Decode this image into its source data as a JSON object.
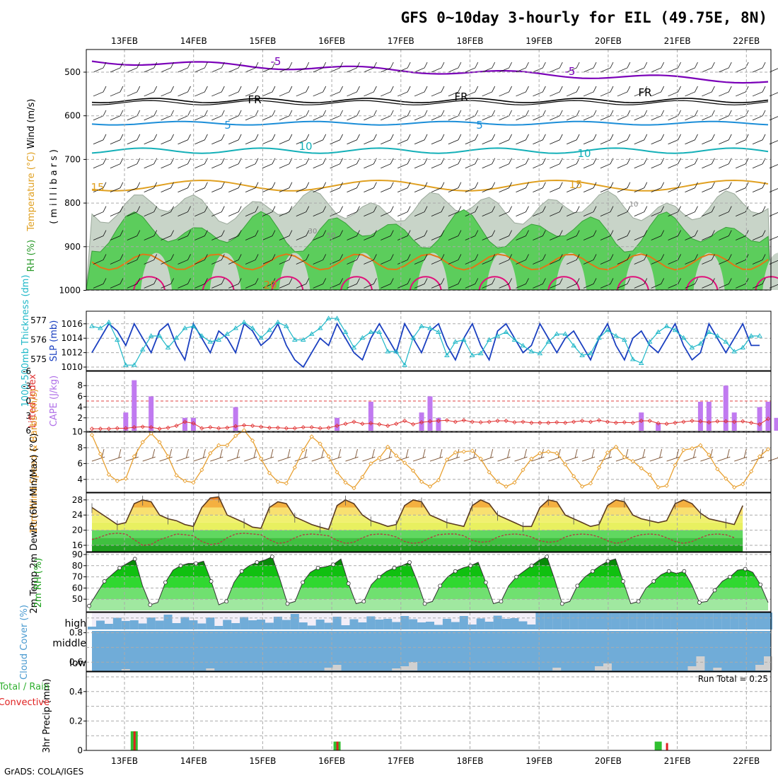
{
  "page": {
    "title": "GFS 0~10day 3-hourly for EIL (49.75E, 8N)",
    "footer": "GrADS: COLA/IGES"
  },
  "colors": {
    "purple": "#7a00b8",
    "black": "#000000",
    "blue5": "#1c8ed8",
    "teal10": "#14b0b8",
    "orange15": "#e0a020",
    "orange20": "#e07818",
    "magenta": "#e0107a",
    "rh_green": "#5ccd5c",
    "rh_gray": "#c8d4c8",
    "slp_blue": "#1a3fc0",
    "thick_teal": "#20b8c8",
    "cape_purple": "#c07af0",
    "li_red": "#e03030",
    "wind_orange": "#e8a030",
    "barb_brown": "#7a5030",
    "temp_fill": "#f0a030",
    "dew_line": "#b04040",
    "rh2m_green": "#18b818",
    "cloud_blue": "#70acd8",
    "precip_green": "#30c030",
    "precip_red": "#e02020"
  },
  "chart_data": [
    {
      "id": "upper_air",
      "type": "heatmap",
      "ylabel_parts": [
        "RH (%)",
        "Temperature (°C)",
        "Wind (m/s)"
      ],
      "ylabel_units": "(millibars)",
      "yticks": [
        "500",
        "600",
        "700",
        "800",
        "900",
        "1000"
      ],
      "xticks": [
        "13FEB",
        "14FEB",
        "15FEB",
        "16FEB",
        "17FEB",
        "18FEB",
        "19FEB",
        "20FEB",
        "21FEB",
        "22FEB"
      ],
      "contour_labels": [
        "-5",
        "-5",
        "FR",
        "FR",
        "FR",
        "5",
        "5",
        "10",
        "10",
        "15",
        "15",
        "20",
        "10",
        "30",
        "50"
      ]
    },
    {
      "id": "slp_thickness",
      "type": "line",
      "ylabel_left": "1000-500mb Thickness (dm)",
      "ylabel_right": "SLP (mb)",
      "yticks_left": [
        "575",
        "576",
        "577"
      ],
      "yticks_right": [
        "1010",
        "1012",
        "1014",
        "1016"
      ],
      "ylim_right": [
        1009,
        1017
      ],
      "series": [
        {
          "name": "SLP (mb)",
          "values": [
            1012,
            1014,
            1016,
            1015,
            1013,
            1016,
            1014,
            1012,
            1015,
            1016,
            1013,
            1011,
            1016,
            1014,
            1012,
            1015,
            1014,
            1012,
            1016,
            1015,
            1013,
            1014,
            1016,
            1013,
            1011,
            1010,
            1012,
            1014,
            1013,
            1016,
            1014,
            1012,
            1011,
            1014,
            1016,
            1014,
            1012,
            1016,
            1014,
            1012,
            1015,
            1016,
            1013,
            1011,
            1014,
            1016,
            1013,
            1011,
            1015,
            1016,
            1014,
            1012,
            1013,
            1016,
            1014,
            1012,
            1014,
            1015,
            1013,
            1011,
            1014,
            1016,
            1013,
            1011,
            1014,
            1015,
            1013,
            1012,
            1014,
            1016,
            1013,
            1011,
            1012,
            1016,
            1014,
            1012,
            1014,
            1016,
            1013,
            1013
          ]
        },
        {
          "name": "1000-500mb Thickness (dm)",
          "values": [
            576.7,
            576.6,
            576.9,
            576.0,
            574.7,
            574.7,
            575.5,
            576.2,
            576.2,
            575.6,
            576.1,
            576.6,
            576.7,
            576.2,
            575.9,
            576.0,
            576.3,
            576.6,
            576.9,
            576.6,
            576.1,
            576.5,
            576.9,
            576.7,
            576.0,
            576.0,
            576.3,
            576.6,
            577.1,
            577.1,
            576.4,
            575.6,
            576.1,
            576.4,
            576.4,
            575.4,
            575.4,
            574.7,
            576.1,
            576.7,
            576.6,
            576.4,
            575.2,
            575.9,
            576.0,
            575.2,
            575.3,
            576.0,
            576.2,
            576.4,
            576.0,
            575.7,
            575.4,
            575.3,
            575.9,
            576.3,
            576.3,
            575.7,
            575.2,
            575.3,
            576.1,
            576.5,
            576.2,
            576.0,
            575.0,
            574.8,
            575.9,
            576.4,
            576.7,
            576.5,
            576.1,
            575.6,
            575.8,
            576.4,
            576.2,
            575.9,
            575.4,
            575.6,
            576.2,
            576.2
          ]
        }
      ]
    },
    {
      "id": "cape_li",
      "type": "bar",
      "ylabel_left": "Lifted Index",
      "ylabel_right": "CAPE (J/kg)",
      "yticks_left": [
        "-6",
        "-3",
        "0",
        "3",
        "6"
      ],
      "yticks_right": [
        "2",
        "4",
        "6",
        "8"
      ],
      "series": [
        {
          "name": "CAPE (J/kg)",
          "bars": [
            [
              4,
              3
            ],
            [
              5,
              9
            ],
            [
              7,
              6
            ],
            [
              11,
              2
            ],
            [
              12,
              2
            ],
            [
              17,
              4
            ],
            [
              29,
              2
            ],
            [
              33,
              5
            ],
            [
              39,
              3
            ],
            [
              40,
              6
            ],
            [
              41,
              2
            ],
            [
              65,
              3
            ],
            [
              67,
              1
            ],
            [
              72,
              5
            ],
            [
              73,
              5
            ],
            [
              75,
              8
            ],
            [
              76,
              3
            ],
            [
              79,
              4
            ],
            [
              80,
              5
            ],
            [
              81,
              2
            ],
            [
              83,
              4
            ]
          ]
        },
        {
          "name": "Lifted Index",
          "values": [
            5.6,
            5.6,
            5.6,
            5.5,
            5.5,
            5.3,
            5.2,
            5.3,
            5.6,
            5.4,
            5.0,
            4.2,
            4.5,
            5.5,
            5.3,
            5.5,
            5.4,
            5.1,
            4.9,
            5.0,
            5.2,
            5.4,
            5.4,
            5.5,
            5.5,
            5.3,
            5.3,
            5.5,
            5.4,
            5.0,
            4.6,
            4.2,
            4.6,
            4.5,
            4.7,
            5.0,
            4.6,
            4.0,
            4.7,
            4.3,
            4.1,
            4.0,
            3.9,
            4.2,
            3.9,
            4.2,
            4.3,
            4.2,
            4.0,
            4.0,
            4.3,
            4.2,
            4.4,
            4.4,
            4.4,
            4.3,
            4.4,
            4.2,
            4.0,
            4.2,
            3.9,
            4.2,
            4.4,
            4.3,
            4.4,
            4.0,
            4.0,
            4.5,
            4.6,
            4.4,
            4.2,
            4.0,
            4.1,
            4.3,
            4.1,
            4.1,
            4.2,
            4.1,
            4.4,
            4.7,
            3.6
          ]
        }
      ]
    },
    {
      "id": "wind10m",
      "type": "line",
      "ylabel": "10m Wind Speed & Barbs (m/s)",
      "yticks": [
        "4",
        "6",
        "8",
        "10"
      ],
      "ylim": [
        2.5,
        10.5
      ],
      "series": [
        {
          "name": "Speed",
          "values": [
            9.6,
            7.2,
            4.6,
            3.8,
            4.1,
            6.9,
            8.7,
            9.8,
            8.7,
            6.9,
            4.5,
            3.8,
            3.6,
            5.2,
            7.3,
            8.3,
            8.3,
            9.5,
            10.2,
            8.9,
            6.6,
            4.8,
            3.7,
            3.5,
            5.5,
            7.7,
            9.4,
            8.5,
            6.9,
            4.9,
            3.6,
            2.9,
            4.3,
            6.0,
            6.7,
            8.1,
            7.0,
            6.1,
            5.1,
            3.7,
            3.1,
            3.9,
            6.5,
            7.4,
            7.5,
            7.6,
            6.6,
            4.9,
            3.7,
            3.1,
            3.6,
            5.2,
            6.6,
            7.3,
            7.5,
            7.3,
            5.9,
            4.4,
            3.1,
            3.5,
            5.5,
            7.4,
            8.1,
            6.8,
            6.3,
            5.4,
            4.6,
            3.0,
            3.2,
            5.8,
            7.7,
            7.9,
            8.3,
            7.1,
            5.3,
            4.1,
            3.0,
            3.4,
            5.0,
            6.9,
            7.8
          ]
        }
      ]
    },
    {
      "id": "temp2m",
      "type": "area",
      "ylabel": "2m Temp 2m DewPt (6hr Min/Max) (°C)",
      "yticks": [
        "16",
        "20",
        "24",
        "28"
      ],
      "ylim": [
        14,
        30
      ],
      "series": [
        {
          "name": "2m Temp",
          "values": [
            26.0,
            24.5,
            23.0,
            21.5,
            22.0,
            27.0,
            28.0,
            27.5,
            24.0,
            23.0,
            22.5,
            21.5,
            21.0,
            26.0,
            28.5,
            28.8,
            24.0,
            23.0,
            22.0,
            20.8,
            20.5,
            26.0,
            27.5,
            27.0,
            23.5,
            22.5,
            21.5,
            20.8,
            20.2,
            26.5,
            28.0,
            27.0,
            24.0,
            22.5,
            21.8,
            21.0,
            21.5,
            26.5,
            28.0,
            27.5,
            24.0,
            23.0,
            22.0,
            21.5,
            21.0,
            26.5,
            28.0,
            27.0,
            24.0,
            23.0,
            22.0,
            21.0,
            21.0,
            26.0,
            28.0,
            27.5,
            24.0,
            23.0,
            22.0,
            21.0,
            21.5,
            26.5,
            28.0,
            27.5,
            24.0,
            23.0,
            22.5,
            22.0,
            22.5,
            27.0,
            28.0,
            27.0,
            24.5,
            23.0,
            22.5,
            22.0,
            21.5,
            26.5
          ]
        },
        {
          "name": "2m DewPt",
          "values": [
            17.5,
            18.2,
            19.0,
            19.2,
            19.0,
            17.5,
            16.0,
            16.2,
            17.5,
            18.2,
            19.0,
            18.8,
            18.5,
            17.0,
            16.2,
            16.5,
            18.0,
            19.0,
            19.2,
            19.0,
            18.8,
            17.5,
            16.5,
            16.8,
            18.0,
            18.8,
            19.0,
            18.8,
            18.5,
            17.3,
            16.5,
            16.8,
            18.0,
            18.8,
            19.0,
            18.8,
            18.2,
            17.0,
            16.5,
            16.8,
            18.0,
            18.8,
            19.0,
            19.0,
            18.5,
            17.3,
            16.8,
            17.0,
            18.2,
            18.8,
            19.0,
            18.8,
            18.2,
            17.2,
            16.8,
            17.0,
            18.2,
            18.8,
            19.0,
            18.8,
            18.2,
            17.2,
            16.5,
            17.0,
            18.2,
            18.8,
            19.0,
            18.8,
            18.0,
            17.0,
            16.5,
            17.0,
            18.0,
            18.8,
            19.0,
            18.8,
            18.0
          ]
        }
      ]
    },
    {
      "id": "rh2m",
      "type": "area",
      "ylabel": "2m RH (%)",
      "yticks": [
        "50",
        "60",
        "70",
        "80",
        "90"
      ],
      "ylim": [
        40,
        91
      ],
      "series": [
        {
          "name": "2m RH",
          "values": [
            44,
            55,
            66,
            72,
            78,
            82,
            86,
            62,
            45,
            47,
            65,
            76,
            80,
            82,
            82,
            84,
            66,
            45,
            48,
            65,
            75,
            80,
            83,
            85,
            88,
            68,
            46,
            48,
            65,
            74,
            78,
            79,
            81,
            86,
            64,
            46,
            48,
            63,
            70,
            75,
            78,
            80,
            83,
            66,
            46,
            48,
            62,
            70,
            75,
            78,
            80,
            83,
            65,
            46,
            48,
            62,
            70,
            75,
            80,
            85,
            88,
            68,
            46,
            48,
            62,
            70,
            75,
            80,
            84,
            86,
            66,
            46,
            48,
            60,
            66,
            72,
            75,
            73,
            75,
            63,
            47,
            48,
            58,
            66,
            70,
            76,
            77,
            74,
            63,
            47
          ]
        }
      ]
    },
    {
      "id": "cloud_cover",
      "type": "bar",
      "ylabel": "Cloud Cover (%)",
      "yticks": [
        "high",
        "middle",
        "low"
      ]
    },
    {
      "id": "precip",
      "type": "bar",
      "ylabel_parts": [
        "Total / Rain",
        "Convective"
      ],
      "ylabel": "3hr Precip (mm)",
      "yticks": [
        "0",
        "0.2",
        "0.4",
        "0.6",
        "0.8"
      ],
      "ylim": [
        0,
        0.95
      ],
      "run_total_label": "Run Total = 0.25",
      "series": [
        {
          "name": "Total / Rain",
          "bars": [
            [
              5,
              0.13
            ],
            [
              29,
              0.06
            ],
            [
              67,
              0.06
            ]
          ]
        },
        {
          "name": "Convective",
          "bars": [
            [
              5,
              0.13
            ],
            [
              29,
              0.06
            ],
            [
              68,
              0.05
            ]
          ]
        }
      ]
    }
  ]
}
